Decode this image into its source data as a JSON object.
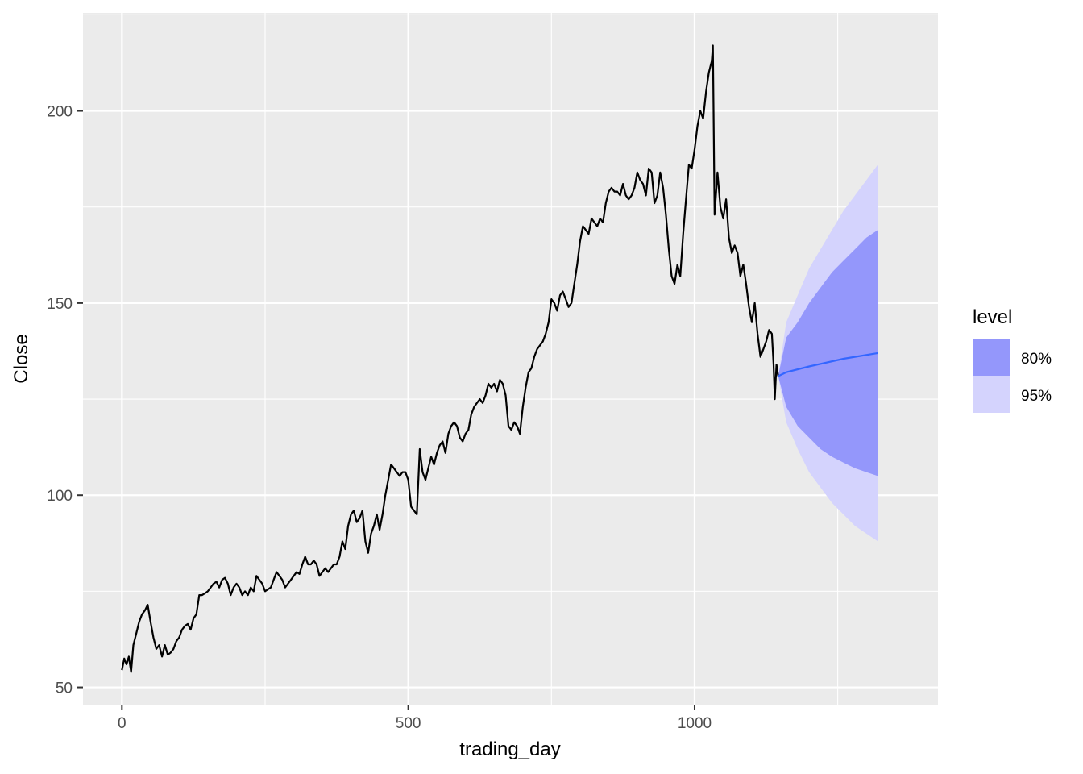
{
  "chart_data": {
    "type": "line",
    "xlabel": "trading_day",
    "ylabel": "Close",
    "xlim": [
      -68,
      1425
    ],
    "ylim": [
      45.5,
      225.5
    ],
    "x_ticks": [
      0,
      500,
      1000
    ],
    "x_tick_labels": [
      "0",
      "500",
      "1000"
    ],
    "y_ticks": [
      50,
      100,
      150,
      200
    ],
    "y_tick_labels": [
      "50",
      "100",
      "150",
      "200"
    ],
    "grid": true,
    "legend_position": "right",
    "legend": {
      "title": "level",
      "entries": [
        {
          "label": "80%",
          "color": "#9497fb"
        },
        {
          "label": "95%",
          "color": "#d4d3fd"
        }
      ]
    },
    "series": [
      {
        "type": "line",
        "color": "#000000",
        "points": [
          [
            0,
            54.5
          ],
          [
            4,
            57.5
          ],
          [
            8,
            56
          ],
          [
            12,
            58
          ],
          [
            16,
            54
          ],
          [
            20,
            61
          ],
          [
            25,
            64
          ],
          [
            30,
            67
          ],
          [
            35,
            69
          ],
          [
            40,
            70
          ],
          [
            45,
            71.5
          ],
          [
            50,
            67
          ],
          [
            55,
            63
          ],
          [
            60,
            60
          ],
          [
            65,
            61
          ],
          [
            70,
            58
          ],
          [
            75,
            61
          ],
          [
            80,
            58.5
          ],
          [
            85,
            59
          ],
          [
            90,
            60
          ],
          [
            95,
            62
          ],
          [
            100,
            63
          ],
          [
            105,
            65
          ],
          [
            110,
            66
          ],
          [
            115,
            66.5
          ],
          [
            120,
            65
          ],
          [
            125,
            68
          ],
          [
            130,
            69
          ],
          [
            135,
            74
          ],
          [
            140,
            74
          ],
          [
            145,
            74.5
          ],
          [
            150,
            75
          ],
          [
            155,
            76
          ],
          [
            160,
            77
          ],
          [
            165,
            77.5
          ],
          [
            170,
            76
          ],
          [
            175,
            78
          ],
          [
            180,
            78.5
          ],
          [
            185,
            77
          ],
          [
            190,
            74
          ],
          [
            195,
            76
          ],
          [
            200,
            77
          ],
          [
            205,
            76
          ],
          [
            210,
            74
          ],
          [
            215,
            75
          ],
          [
            220,
            74
          ],
          [
            225,
            76
          ],
          [
            230,
            75
          ],
          [
            235,
            79
          ],
          [
            240,
            78
          ],
          [
            245,
            77
          ],
          [
            250,
            75
          ],
          [
            255,
            75.5
          ],
          [
            260,
            76
          ],
          [
            265,
            78
          ],
          [
            270,
            80
          ],
          [
            275,
            79
          ],
          [
            280,
            78
          ],
          [
            285,
            76
          ],
          [
            290,
            77
          ],
          [
            295,
            78
          ],
          [
            300,
            79
          ],
          [
            305,
            80
          ],
          [
            310,
            79.5
          ],
          [
            315,
            82
          ],
          [
            320,
            84
          ],
          [
            325,
            82
          ],
          [
            330,
            82
          ],
          [
            335,
            83
          ],
          [
            340,
            82
          ],
          [
            345,
            79
          ],
          [
            350,
            80
          ],
          [
            355,
            81
          ],
          [
            360,
            80
          ],
          [
            365,
            81
          ],
          [
            370,
            82
          ],
          [
            375,
            82
          ],
          [
            380,
            84
          ],
          [
            385,
            88
          ],
          [
            390,
            86
          ],
          [
            395,
            92
          ],
          [
            400,
            95
          ],
          [
            405,
            96
          ],
          [
            410,
            93
          ],
          [
            415,
            94
          ],
          [
            420,
            96
          ],
          [
            425,
            88
          ],
          [
            430,
            85
          ],
          [
            435,
            90
          ],
          [
            440,
            92
          ],
          [
            445,
            95
          ],
          [
            450,
            91
          ],
          [
            455,
            95
          ],
          [
            460,
            100
          ],
          [
            465,
            104
          ],
          [
            470,
            108
          ],
          [
            475,
            107
          ],
          [
            480,
            106
          ],
          [
            485,
            105
          ],
          [
            490,
            106
          ],
          [
            495,
            106
          ],
          [
            500,
            104
          ],
          [
            505,
            97
          ],
          [
            510,
            96
          ],
          [
            515,
            95
          ],
          [
            520,
            112
          ],
          [
            525,
            106
          ],
          [
            530,
            104
          ],
          [
            535,
            107
          ],
          [
            540,
            110
          ],
          [
            545,
            108
          ],
          [
            550,
            111
          ],
          [
            555,
            113
          ],
          [
            560,
            114
          ],
          [
            565,
            111
          ],
          [
            570,
            116
          ],
          [
            575,
            118
          ],
          [
            580,
            119
          ],
          [
            585,
            118
          ],
          [
            590,
            115
          ],
          [
            595,
            114
          ],
          [
            600,
            116
          ],
          [
            605,
            117
          ],
          [
            610,
            121
          ],
          [
            615,
            123
          ],
          [
            620,
            124
          ],
          [
            625,
            125
          ],
          [
            630,
            124
          ],
          [
            635,
            126
          ],
          [
            640,
            129
          ],
          [
            645,
            128
          ],
          [
            650,
            129
          ],
          [
            655,
            127
          ],
          [
            660,
            130
          ],
          [
            665,
            129
          ],
          [
            670,
            126
          ],
          [
            675,
            118
          ],
          [
            680,
            117
          ],
          [
            685,
            119
          ],
          [
            690,
            118
          ],
          [
            695,
            116
          ],
          [
            700,
            123
          ],
          [
            705,
            128
          ],
          [
            710,
            132
          ],
          [
            715,
            133
          ],
          [
            720,
            136
          ],
          [
            725,
            138
          ],
          [
            730,
            139
          ],
          [
            735,
            140
          ],
          [
            740,
            142
          ],
          [
            745,
            145
          ],
          [
            750,
            151
          ],
          [
            755,
            150
          ],
          [
            760,
            148
          ],
          [
            765,
            152
          ],
          [
            770,
            153
          ],
          [
            775,
            151
          ],
          [
            780,
            149
          ],
          [
            785,
            150
          ],
          [
            790,
            155
          ],
          [
            795,
            160
          ],
          [
            800,
            166
          ],
          [
            805,
            170
          ],
          [
            810,
            169
          ],
          [
            815,
            168
          ],
          [
            820,
            172
          ],
          [
            825,
            171
          ],
          [
            830,
            170
          ],
          [
            835,
            172
          ],
          [
            840,
            171
          ],
          [
            845,
            176
          ],
          [
            850,
            179
          ],
          [
            855,
            180
          ],
          [
            860,
            179
          ],
          [
            865,
            179
          ],
          [
            870,
            178
          ],
          [
            875,
            181
          ],
          [
            880,
            178
          ],
          [
            885,
            177
          ],
          [
            890,
            178
          ],
          [
            895,
            180
          ],
          [
            900,
            184
          ],
          [
            905,
            182
          ],
          [
            910,
            181
          ],
          [
            915,
            178
          ],
          [
            920,
            185
          ],
          [
            925,
            184
          ],
          [
            930,
            176
          ],
          [
            935,
            178
          ],
          [
            940,
            184
          ],
          [
            945,
            180
          ],
          [
            950,
            173
          ],
          [
            955,
            164
          ],
          [
            960,
            157
          ],
          [
            965,
            155
          ],
          [
            970,
            160
          ],
          [
            975,
            157
          ],
          [
            980,
            168
          ],
          [
            985,
            177
          ],
          [
            990,
            186
          ],
          [
            995,
            185
          ],
          [
            1000,
            190
          ],
          [
            1005,
            196
          ],
          [
            1010,
            200
          ],
          [
            1015,
            198
          ],
          [
            1020,
            205
          ],
          [
            1025,
            210
          ],
          [
            1030,
            213
          ],
          [
            1032,
            217
          ],
          [
            1035,
            173
          ],
          [
            1040,
            184
          ],
          [
            1045,
            175
          ],
          [
            1050,
            172
          ],
          [
            1055,
            177
          ],
          [
            1060,
            167
          ],
          [
            1065,
            163
          ],
          [
            1070,
            165
          ],
          [
            1075,
            163
          ],
          [
            1080,
            157
          ],
          [
            1085,
            160
          ],
          [
            1090,
            155
          ],
          [
            1095,
            149
          ],
          [
            1100,
            145
          ],
          [
            1105,
            150
          ],
          [
            1110,
            142
          ],
          [
            1115,
            136
          ],
          [
            1120,
            138
          ],
          [
            1125,
            140
          ],
          [
            1130,
            143
          ],
          [
            1135,
            142
          ],
          [
            1138,
            134
          ],
          [
            1140,
            125
          ],
          [
            1143,
            134
          ],
          [
            1146,
            131
          ]
        ]
      },
      {
        "type": "line",
        "name": "forecast",
        "color": "#3366ff",
        "points": [
          [
            1146,
            131
          ],
          [
            1160,
            132
          ],
          [
            1200,
            133.5
          ],
          [
            1260,
            135.5
          ],
          [
            1320,
            137
          ]
        ]
      },
      {
        "type": "ribbon",
        "level": "95%",
        "color": "#d4d3fd",
        "x": [
          1146,
          1160,
          1180,
          1200,
          1220,
          1240,
          1260,
          1280,
          1300,
          1320
        ],
        "lower": [
          131,
          119,
          112,
          106,
          102,
          98,
          95,
          92,
          90,
          88
        ],
        "upper": [
          131,
          145,
          152,
          159,
          164,
          169,
          174,
          178,
          182,
          186
        ]
      },
      {
        "type": "ribbon",
        "level": "80%",
        "color": "#9497fb",
        "x": [
          1146,
          1160,
          1180,
          1200,
          1220,
          1240,
          1260,
          1280,
          1300,
          1320
        ],
        "lower": [
          131,
          123,
          118,
          115,
          112,
          110,
          108.5,
          107,
          106,
          105
        ],
        "upper": [
          131,
          141,
          145,
          150,
          154,
          158,
          161,
          164,
          167,
          169
        ]
      }
    ]
  }
}
